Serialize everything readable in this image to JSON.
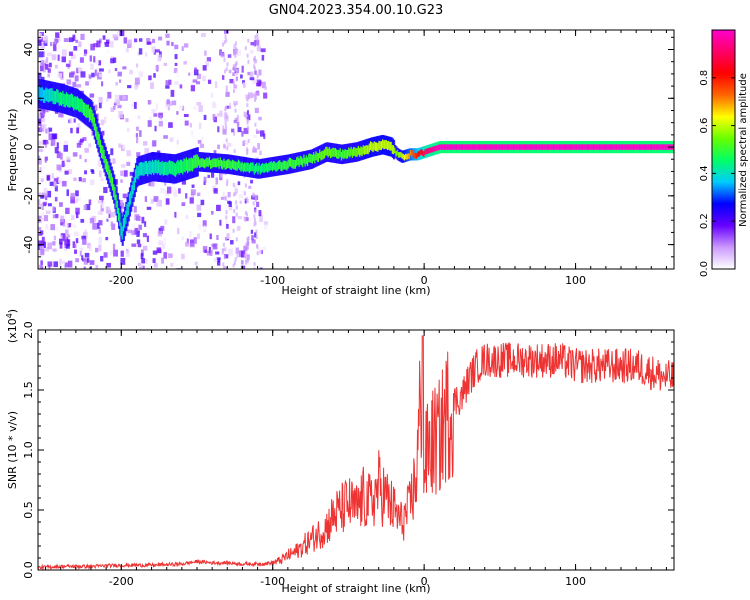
{
  "title": "GN04.2023.354.00.10.G23",
  "chart_data": [
    {
      "type": "heatmap",
      "xlabel": "Height of straight line (km)",
      "ylabel": "Frequency (Hz)",
      "xlim": [
        -255,
        165
      ],
      "ylim": [
        -50,
        48
      ],
      "xticks": [
        -200,
        -100,
        0,
        100
      ],
      "yticks": [
        -40,
        -20,
        0,
        20,
        40
      ],
      "colorbar": {
        "label": "Normalized spectral amplitude",
        "range": [
          0,
          1
        ],
        "ticks": [
          0.0,
          0.2,
          0.4,
          0.6,
          0.8
        ],
        "colors": [
          "#ffffff",
          "#cc99ff",
          "#6600ff",
          "#0000ff",
          "#00ccff",
          "#00ff66",
          "#66ff00",
          "#ffff00",
          "#ff6600",
          "#ff0000",
          "#ff0066",
          "#ff00cc"
        ]
      },
      "ridge": {
        "x": [
          -255,
          -240,
          -230,
          -220,
          -215,
          -210,
          -205,
          -200,
          -190,
          -180,
          -165,
          -150,
          -130,
          -110,
          -90,
          -75,
          -65,
          -55,
          -45,
          -35,
          -28,
          -22,
          -18,
          -15,
          -10,
          -5,
          0,
          10,
          30,
          60,
          100,
          130,
          165
        ],
        "y": [
          22,
          20,
          18,
          13,
          2,
          -8,
          -18,
          -35,
          -10,
          -8,
          -9,
          -6,
          -7,
          -9,
          -7,
          -5,
          -2,
          -3,
          -2,
          0,
          1,
          0,
          -3,
          -4,
          -3,
          -3,
          -2,
          0,
          0,
          0,
          0,
          0,
          0
        ],
        "amplitude": [
          0.35,
          0.45,
          0.45,
          0.5,
          0.5,
          0.5,
          0.5,
          0.4,
          0.4,
          0.4,
          0.45,
          0.5,
          0.5,
          0.45,
          0.5,
          0.5,
          0.55,
          0.5,
          0.55,
          0.6,
          0.6,
          0.6,
          0.55,
          0.6,
          0.7,
          0.8,
          0.9,
          1.0,
          1.0,
          1.0,
          1.0,
          1.0,
          1.0
        ]
      }
    },
    {
      "type": "line",
      "xlabel": "Height of straight line (km)",
      "ylabel": "SNR (10 * v/v)",
      "yscale_label": "(x10",
      "yscale_exponent": "4",
      "xlim": [
        -255,
        165
      ],
      "ylim": [
        0,
        2.0
      ],
      "xticks": [
        -200,
        -100,
        0,
        100
      ],
      "yticks": [
        0.0,
        0.5,
        1.0,
        1.5,
        2.0
      ],
      "ytick_labels": [
        "0.0",
        "0.5",
        "1.0",
        "1.5",
        "2.0"
      ],
      "color": "#ee3333",
      "series": [
        {
          "x": [
            -255,
            -240,
            -220,
            -200,
            -180,
            -160,
            -150,
            -140,
            -130,
            -120,
            -110,
            -100,
            -95,
            -90,
            -85,
            -80,
            -75,
            -70,
            -65,
            -60,
            -55,
            -50,
            -45,
            -40,
            -35,
            -30,
            -25,
            -20,
            -15,
            -10,
            -5,
            -2,
            0,
            2,
            5,
            10,
            15,
            20,
            25,
            30,
            35,
            40,
            50,
            60,
            70,
            80,
            90,
            100,
            110,
            120,
            130,
            140,
            150,
            160,
            165
          ],
          "y": [
            0.02,
            0.03,
            0.03,
            0.04,
            0.04,
            0.05,
            0.07,
            0.06,
            0.06,
            0.05,
            0.05,
            0.06,
            0.08,
            0.12,
            0.15,
            0.2,
            0.25,
            0.3,
            0.35,
            0.45,
            0.5,
            0.55,
            0.5,
            0.6,
            0.55,
            0.7,
            0.6,
            0.5,
            0.4,
            0.5,
            0.8,
            1.5,
            0.8,
            1.0,
            1.05,
            1.1,
            1.3,
            1.4,
            1.45,
            1.6,
            1.7,
            1.75,
            1.75,
            1.75,
            1.75,
            1.75,
            1.75,
            1.7,
            1.7,
            1.7,
            1.7,
            1.7,
            1.65,
            1.6,
            1.6
          ]
        }
      ]
    }
  ]
}
